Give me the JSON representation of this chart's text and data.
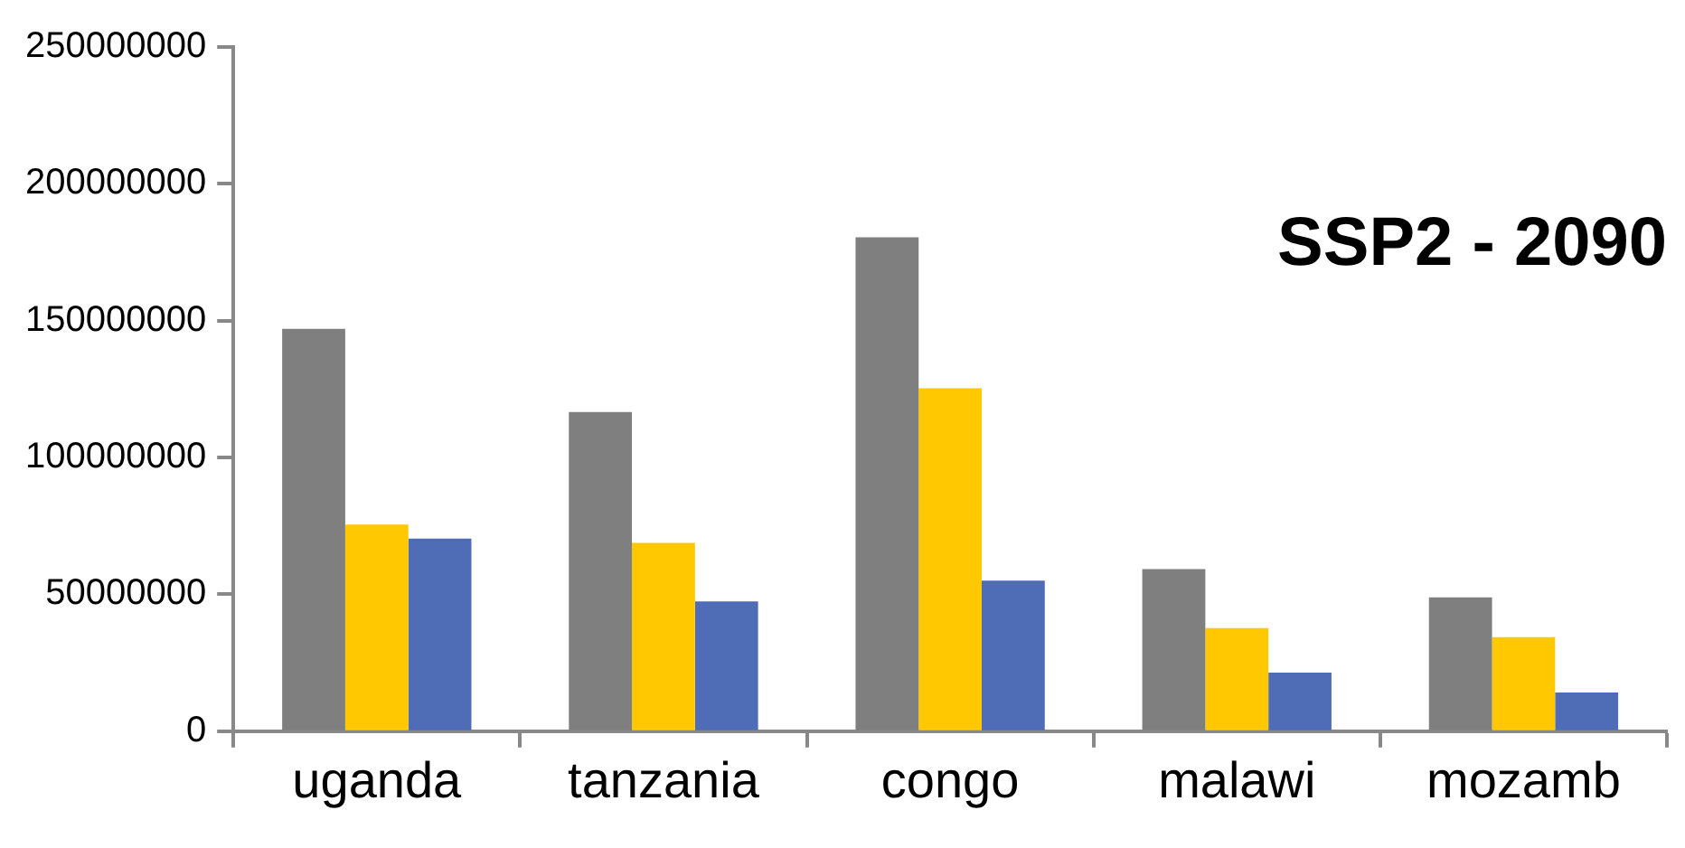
{
  "chart_data": {
    "type": "bar",
    "title": "SSP2 - 2090",
    "categories": [
      "uganda",
      "tanzania",
      "congo",
      "malawi",
      "mozamb"
    ],
    "series": [
      {
        "color": "#7f7f7f",
        "values": [
          147000000,
          116600000,
          180500000,
          59200000,
          48900000
        ]
      },
      {
        "color": "#ffc800",
        "values": [
          75500000,
          68800000,
          125300000,
          37700000,
          34400000
        ]
      },
      {
        "color": "#4f6cb6",
        "values": [
          70400000,
          47400000,
          55000000,
          21400000,
          14100000
        ]
      }
    ],
    "ylim": [
      0,
      250000000
    ],
    "yticks": [
      0,
      50000000,
      100000000,
      150000000,
      200000000,
      250000000
    ],
    "grid": false,
    "legend": false
  }
}
